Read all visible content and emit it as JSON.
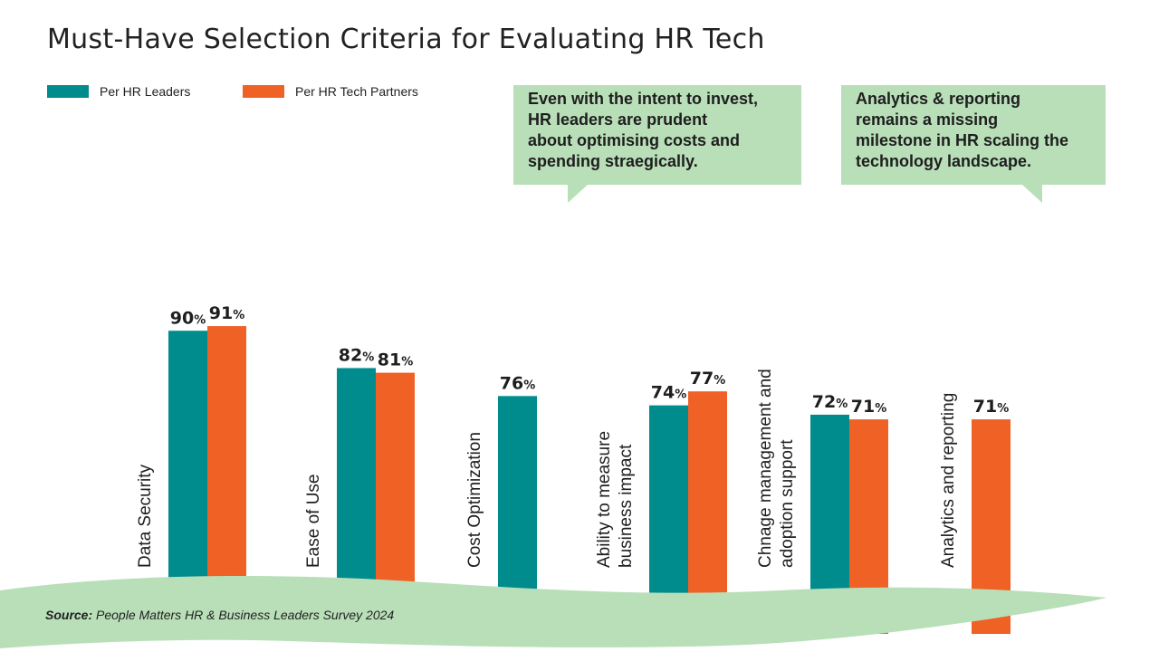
{
  "title": "Must-Have Selection Criteria for Evaluating HR Tech",
  "legend": [
    {
      "label": "Per HR Leaders",
      "color": "#008c8c"
    },
    {
      "label": "Per HR Tech Partners",
      "color": "#f06126"
    }
  ],
  "callouts": {
    "costs": [
      "Even with the intent to invest,",
      "HR leaders are prudent",
      "about optimising costs and",
      "spending straegically."
    ],
    "analytics": [
      "Analytics & reporting",
      "remains a missing",
      "milestone in HR scaling the",
      "technology landscape."
    ]
  },
  "source": {
    "label": "Source:",
    "text": "People Matters HR & Business Leaders Survey 2024"
  },
  "colors": {
    "leaders": "#008c8c",
    "partners": "#f06126",
    "wave": "#b9dfb9",
    "callout": "#b9dfb9"
  },
  "chart_data": {
    "type": "bar",
    "title": "Must-Have Selection Criteria for Evaluating HR Tech",
    "unit": "%",
    "categories": [
      [
        "Data Security"
      ],
      [
        "Ease of Use"
      ],
      [
        "Cost Optimization"
      ],
      [
        "Ability to measure",
        "business impact"
      ],
      [
        "Chnage management and",
        "adoption support"
      ],
      [
        "Analytics and reporting"
      ]
    ],
    "series": [
      {
        "name": "Per HR Leaders",
        "values": [
          90,
          82,
          76,
          74,
          72,
          null
        ]
      },
      {
        "name": "Per HR Tech Partners",
        "values": [
          91,
          81,
          null,
          77,
          71,
          71
        ]
      }
    ],
    "ylim": [
      0,
      100
    ],
    "grid": false,
    "legend_position": "top-left"
  }
}
